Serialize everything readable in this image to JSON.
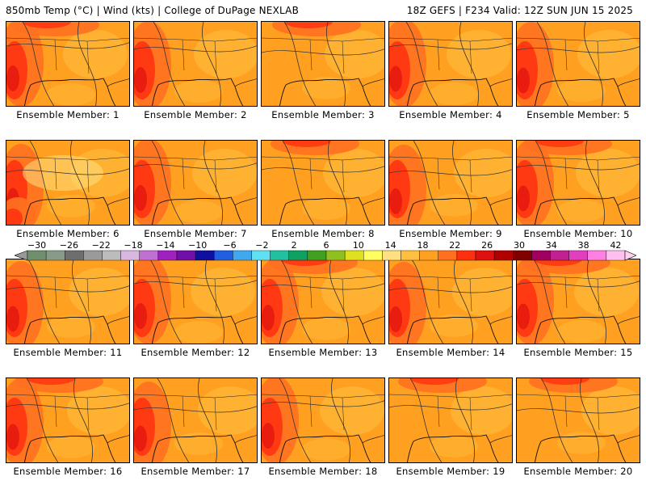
{
  "header": {
    "left": "850mb Temp (°C) | Wind (kts) | College of DuPage NEXLAB",
    "right": "18Z GEFS | F234 Valid: 12Z SUN JUN 15 2025"
  },
  "panels": [
    {
      "label": "Ensemble Member: 1",
      "hot": "west-north"
    },
    {
      "label": "Ensemble Member: 2",
      "hot": "west"
    },
    {
      "label": "Ensemble Member: 3",
      "hot": "north"
    },
    {
      "label": "Ensemble Member: 4",
      "hot": "west"
    },
    {
      "label": "Ensemble Member: 5",
      "hot": "west"
    },
    {
      "label": "Ensemble Member: 6",
      "hot": "southwest"
    },
    {
      "label": "Ensemble Member: 7",
      "hot": "west"
    },
    {
      "label": "Ensemble Member: 8",
      "hot": "north"
    },
    {
      "label": "Ensemble Member: 9",
      "hot": "west"
    },
    {
      "label": "Ensemble Member: 10",
      "hot": "west-north"
    },
    {
      "label": "Ensemble Member: 11",
      "hot": "west"
    },
    {
      "label": "Ensemble Member: 12",
      "hot": "west"
    },
    {
      "label": "Ensemble Member: 13",
      "hot": "west-north"
    },
    {
      "label": "Ensemble Member: 14",
      "hot": "west"
    },
    {
      "label": "Ensemble Member: 15",
      "hot": "west-north"
    },
    {
      "label": "Ensemble Member: 16",
      "hot": "west-north"
    },
    {
      "label": "Ensemble Member: 17",
      "hot": "west"
    },
    {
      "label": "Ensemble Member: 18",
      "hot": "west"
    },
    {
      "label": "Ensemble Member: 19",
      "hot": "north"
    },
    {
      "label": "Ensemble Member: 20",
      "hot": "north"
    }
  ],
  "colorbar": {
    "tick_labels": [
      "−30",
      "−26",
      "−22",
      "−18",
      "−14",
      "−10",
      "−6",
      "−2",
      "2",
      "6",
      "10",
      "14",
      "18",
      "22",
      "26",
      "30",
      "34",
      "38",
      "42"
    ],
    "colors": [
      "#6f8f6f",
      "#8a9a8a",
      "#6e6e6e",
      "#9a9a9a",
      "#bcbcbc",
      "#d8b8e0",
      "#c070d0",
      "#a020c0",
      "#7010a8",
      "#1010a0",
      "#2060e0",
      "#40a8f0",
      "#60e0f0",
      "#20c0a0",
      "#10a060",
      "#40a020",
      "#90c020",
      "#e0e020",
      "#ffff60",
      "#ffe080",
      "#ffc040",
      "#ffa020",
      "#ff7020",
      "#ff3010",
      "#e01010",
      "#b00000",
      "#800000",
      "#a00060",
      "#c02090",
      "#e040c0",
      "#ff80e0",
      "#ffc0f0"
    ]
  },
  "colors": {
    "base_orange": "#ffa020",
    "light_orange": "#ffc040",
    "hot_orange": "#ff7020",
    "red": "#ff3010",
    "deep_red": "#e01010"
  }
}
